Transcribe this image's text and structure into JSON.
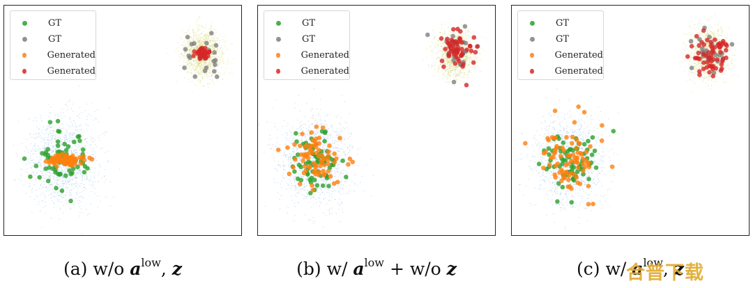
{
  "chart_data": [
    {
      "type": "scatter",
      "caption": {
        "prefix": "(a) w/o ",
        "symbol": "a",
        "superscript": "low",
        "sep": ", ",
        "symbol2": "z",
        "tail": ""
      },
      "legend": {
        "placement": "top-left",
        "entries": [
          "GT",
          "GT",
          "Generated",
          "Generated"
        ]
      },
      "grid": false,
      "series": [
        {
          "name": "GT",
          "color": "#2ca02c",
          "cluster": "lower-left",
          "center": [
            -1.8,
            -1.0
          ],
          "spread": 0.34,
          "count": 70
        },
        {
          "name": "GT",
          "color": "#7f7f7f",
          "cluster": "upper-right",
          "center": [
            1.8,
            1.2
          ],
          "spread": 0.22,
          "count": 26
        },
        {
          "name": "Generated",
          "color": "#ff7f0e",
          "cluster": "lower-left",
          "center": [
            -1.75,
            -0.98
          ],
          "spread": [
            0.22,
            0.05
          ],
          "count": 90
        },
        {
          "name": "Generated",
          "color": "#d62728",
          "cluster": "upper-right",
          "center": [
            1.82,
            1.22
          ],
          "spread": [
            0.08,
            0.05
          ],
          "count": 45
        }
      ]
    },
    {
      "type": "scatter",
      "caption": {
        "prefix": "(b) w/ ",
        "symbol": "a",
        "superscript": "low",
        "sep": " + w/o ",
        "symbol2": "z",
        "tail": ""
      },
      "legend": {
        "placement": "top-left",
        "entries": [
          "GT",
          "GT",
          "Generated",
          "Generated"
        ]
      },
      "grid": false,
      "series": [
        {
          "name": "GT",
          "color": "#2ca02c",
          "cluster": "lower-left",
          "center": [
            -1.8,
            -1.0
          ],
          "spread": 0.34,
          "count": 70
        },
        {
          "name": "GT",
          "color": "#7f7f7f",
          "cluster": "upper-right",
          "center": [
            1.8,
            1.2
          ],
          "spread": 0.22,
          "count": 26
        },
        {
          "name": "Generated",
          "color": "#ff7f0e",
          "cluster": "lower-left",
          "center": [
            -1.8,
            -0.95
          ],
          "spread": 0.32,
          "count": 80
        },
        {
          "name": "Generated",
          "color": "#d62728",
          "cluster": "upper-right",
          "center": [
            1.85,
            1.25
          ],
          "spread": 0.2,
          "count": 55
        }
      ]
    },
    {
      "type": "scatter",
      "caption": {
        "prefix": "(c) w/ ",
        "symbol": "a",
        "superscript": "low",
        "sep": ", ",
        "symbol2": "z",
        "tail": ""
      },
      "legend": {
        "placement": "top-left",
        "entries": [
          "GT",
          "GT",
          "Generated",
          "Generated"
        ]
      },
      "grid": false,
      "series": [
        {
          "name": "GT",
          "color": "#2ca02c",
          "cluster": "lower-left",
          "center": [
            -1.8,
            -1.0
          ],
          "spread": 0.34,
          "count": 70
        },
        {
          "name": "GT",
          "color": "#7f7f7f",
          "cluster": "upper-right",
          "center": [
            1.8,
            1.2
          ],
          "spread": 0.22,
          "count": 26
        },
        {
          "name": "Generated",
          "color": "#ff7f0e",
          "cluster": "lower-left",
          "center": [
            -1.8,
            -0.98
          ],
          "spread": 0.36,
          "count": 85
        },
        {
          "name": "Generated",
          "color": "#d62728",
          "cluster": "upper-right",
          "center": [
            1.82,
            1.2
          ],
          "spread": 0.24,
          "count": 60
        }
      ]
    }
  ],
  "background_density": [
    {
      "color": "#6fa8dc",
      "center": [
        -1.8,
        -1.0
      ],
      "spread": 0.45
    },
    {
      "color": "#c9c94a",
      "center": [
        1.8,
        1.2
      ],
      "spread": 0.25
    }
  ],
  "axes": {
    "xlim": [
      -3.3,
      2.8
    ],
    "ylim": [
      -2.5,
      2.2
    ]
  },
  "watermark": "合普下载"
}
